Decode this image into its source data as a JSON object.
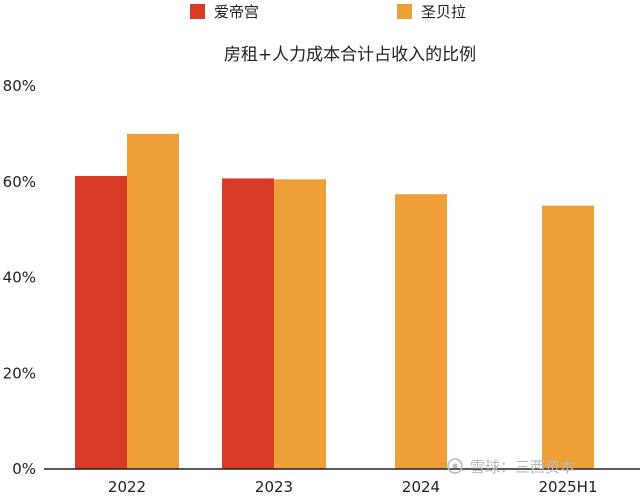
{
  "chart_data": {
    "type": "bar",
    "title": "房租+人力成本合计占收入的比例",
    "categories": [
      "2022",
      "2023",
      "2024",
      "2025H1"
    ],
    "series": [
      {
        "name": "爱帝宫",
        "color": "#d83c27",
        "values": [
          61.2,
          60.7,
          null,
          null
        ]
      },
      {
        "name": "圣贝拉",
        "color": "#ee9f38",
        "values": [
          70.0,
          60.5,
          57.4,
          55.0
        ]
      }
    ],
    "ylim": [
      0,
      80
    ],
    "yticks": [
      "0%",
      "20%",
      "40%",
      "60%",
      "80%"
    ],
    "ytick_values": [
      0,
      20,
      40,
      60,
      80
    ],
    "grid": false,
    "legend_position": "top"
  },
  "watermark": {
    "text": "雪球：三西资本"
  }
}
